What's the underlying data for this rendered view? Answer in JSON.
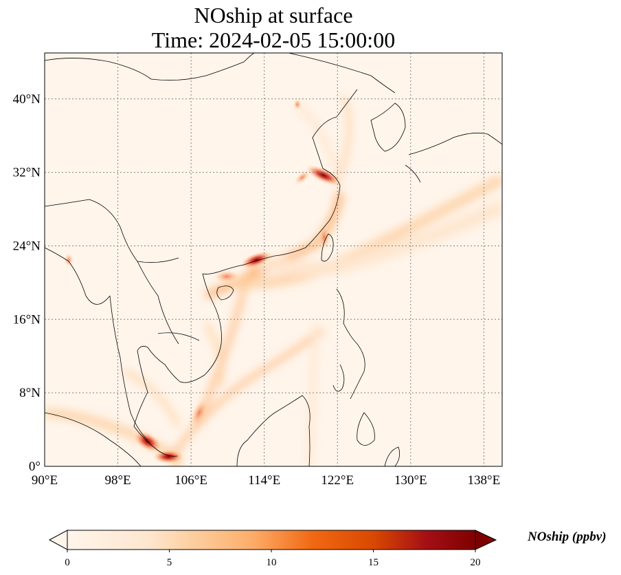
{
  "title": {
    "line1": "NOship at surface",
    "line2": "Time: 2024-02-05 15:00:00"
  },
  "map": {
    "variable": "NOship",
    "projection": "PlateCarree",
    "lon_range": [
      90,
      140
    ],
    "lat_range": [
      0,
      45
    ],
    "gridlines": "dotted",
    "x_ticks": [
      "90°E",
      "98°E",
      "106°E",
      "114°E",
      "122°E",
      "130°E",
      "138°E"
    ],
    "x_tick_values": [
      90,
      98,
      106,
      114,
      122,
      130,
      138
    ],
    "y_ticks": [
      "0°",
      "8°N",
      "16°N",
      "24°N",
      "32°N",
      "40°N"
    ],
    "y_tick_values": [
      0,
      8,
      16,
      24,
      32,
      40
    ],
    "hotspots_lonlat": [
      [
        104.0,
        1.2
      ],
      [
        100.8,
        2.9
      ],
      [
        113.8,
        22.3
      ],
      [
        121.8,
        31.4
      ],
      [
        110.3,
        20.2
      ],
      [
        118.2,
        33.0
      ],
      [
        106.8,
        5.0
      ]
    ],
    "colors": {
      "low": "#fff5eb",
      "mid": "#fdae6b",
      "high": "#d94801",
      "max": "#7f0000",
      "coast": "#000000"
    }
  },
  "colorbar": {
    "label": "NOship (ppbv)",
    "ticks": [
      "0",
      "5",
      "10",
      "15",
      "20"
    ],
    "tick_values": [
      0,
      5,
      10,
      15,
      20
    ],
    "min": 0,
    "max": 20,
    "extend": "both",
    "cmap": "OrRd"
  }
}
